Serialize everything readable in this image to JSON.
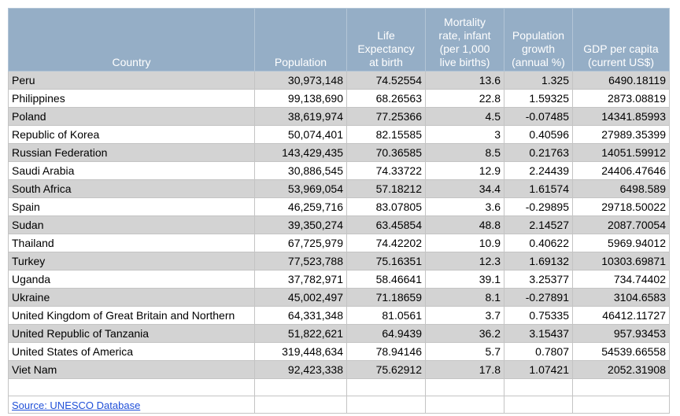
{
  "table": {
    "header": [
      "Country",
      "Population",
      "Life\nExpectancy\nat birth",
      "Mortality\nrate, infant\n(per 1,000\nlive births)",
      "Population\ngrowth\n(annual %)",
      "GDP per capita\n(current US$)"
    ],
    "rows": [
      [
        "Peru",
        "30,973,148",
        "74.52554",
        "13.6",
        "1.325",
        "6490.18119"
      ],
      [
        "Philippines",
        "99,138,690",
        "68.26563",
        "22.8",
        "1.59325",
        "2873.08819"
      ],
      [
        "Poland",
        "38,619,974",
        "77.25366",
        "4.5",
        "-0.07485",
        "14341.85993"
      ],
      [
        "Republic of Korea",
        "50,074,401",
        "82.15585",
        "3",
        "0.40596",
        "27989.35399"
      ],
      [
        "Russian Federation",
        "143,429,435",
        "70.36585",
        "8.5",
        "0.21763",
        "14051.59912"
      ],
      [
        "Saudi Arabia",
        "30,886,545",
        "74.33722",
        "12.9",
        "2.24439",
        "24406.47646"
      ],
      [
        "South Africa",
        "53,969,054",
        "57.18212",
        "34.4",
        "1.61574",
        "6498.589"
      ],
      [
        "Spain",
        "46,259,716",
        "83.07805",
        "3.6",
        "-0.29895",
        "29718.50022"
      ],
      [
        "Sudan",
        "39,350,274",
        "63.45854",
        "48.8",
        "2.14527",
        "2087.70054"
      ],
      [
        "Thailand",
        "67,725,979",
        "74.42202",
        "10.9",
        "0.40622",
        "5969.94012"
      ],
      [
        "Turkey",
        "77,523,788",
        "75.16351",
        "12.3",
        "1.69132",
        "10303.69871"
      ],
      [
        "Uganda",
        "37,782,971",
        "58.46641",
        "39.1",
        "3.25377",
        "734.74402"
      ],
      [
        "Ukraine",
        "45,002,497",
        "71.18659",
        "8.1",
        "-0.27891",
        "3104.6583"
      ],
      [
        "United Kingdom of Great Britain and Northern",
        "64,331,348",
        "81.0561",
        "3.7",
        "0.75335",
        "46412.11727"
      ],
      [
        "United Republic of Tanzania",
        "51,822,621",
        "64.9439",
        "36.2",
        "3.15437",
        "957.93453"
      ],
      [
        "United States of America",
        "319,448,634",
        "78.94146",
        "5.7",
        "0.7807",
        "54539.66558"
      ],
      [
        "Viet Nam",
        "92,423,338",
        "75.62912",
        "17.8",
        "1.07421",
        "2052.31908"
      ]
    ]
  },
  "source": "Source: UNESCO Database"
}
